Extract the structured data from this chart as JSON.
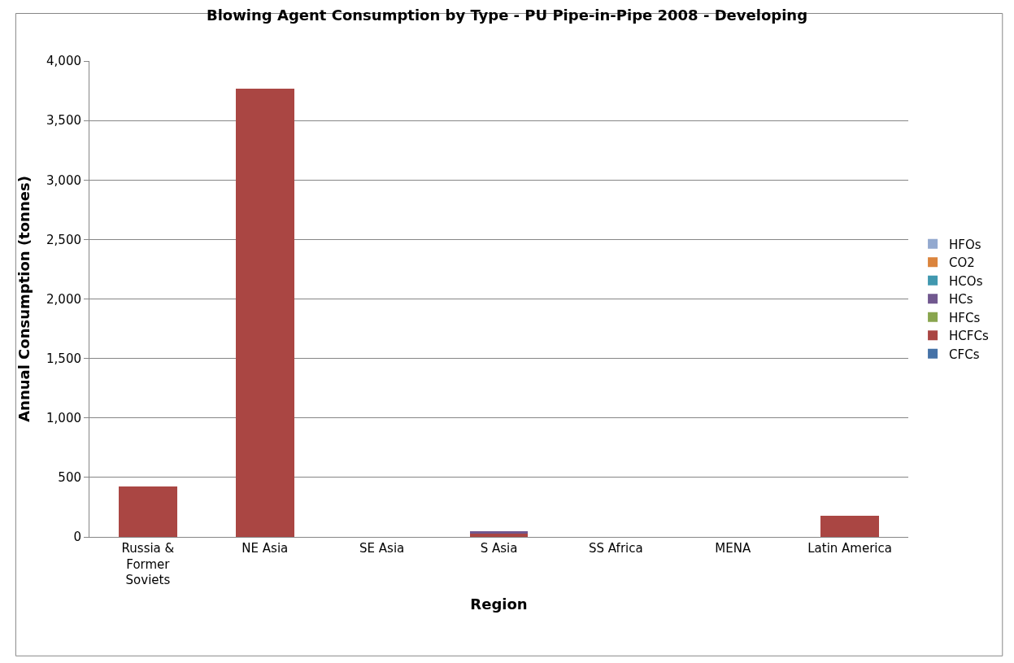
{
  "chart_data": {
    "type": "bar",
    "stacked": true,
    "title": "Blowing Agent Consumption by Type - PU Pipe-in-Pipe 2008 - Developing",
    "xlabel": "Region",
    "ylabel": "Annual Consumption (tonnes)",
    "categories": [
      "Russia & Former Soviets",
      "NE Asia",
      "SE Asia",
      "S Asia",
      "SS Africa",
      "MENA",
      "Latin America"
    ],
    "series": [
      {
        "name": "CFCs",
        "color": "#4572a7",
        "values": [
          0,
          0,
          0,
          0,
          0,
          0,
          0
        ]
      },
      {
        "name": "HCFCs",
        "color": "#aa4643",
        "values": [
          425,
          3770,
          0,
          25,
          0,
          0,
          180
        ]
      },
      {
        "name": "HFCs",
        "color": "#89a54e",
        "values": [
          0,
          0,
          0,
          0,
          0,
          0,
          0
        ]
      },
      {
        "name": "HCs",
        "color": "#71588f",
        "values": [
          0,
          0,
          0,
          25,
          0,
          0,
          0
        ]
      },
      {
        "name": "HCOs",
        "color": "#4198af",
        "values": [
          0,
          0,
          0,
          0,
          0,
          0,
          0
        ]
      },
      {
        "name": "CO2",
        "color": "#db843d",
        "values": [
          0,
          0,
          0,
          0,
          0,
          0,
          0
        ]
      },
      {
        "name": "HFOs",
        "color": "#93a9cf",
        "values": [
          0,
          0,
          0,
          0,
          0,
          0,
          0
        ]
      }
    ],
    "ylim": [
      0,
      4000
    ],
    "yticks": [
      {
        "value": 0,
        "label": "0"
      },
      {
        "value": 500,
        "label": "500"
      },
      {
        "value": 1000,
        "label": "1,000"
      },
      {
        "value": 1500,
        "label": "1,500"
      },
      {
        "value": 2000,
        "label": "2,000"
      },
      {
        "value": 2500,
        "label": "2,500"
      },
      {
        "value": 3000,
        "label": "3,000"
      },
      {
        "value": 3500,
        "label": "3,500"
      },
      {
        "value": 4000,
        "label": "4,000"
      }
    ],
    "grid": "y",
    "legend": "right"
  }
}
